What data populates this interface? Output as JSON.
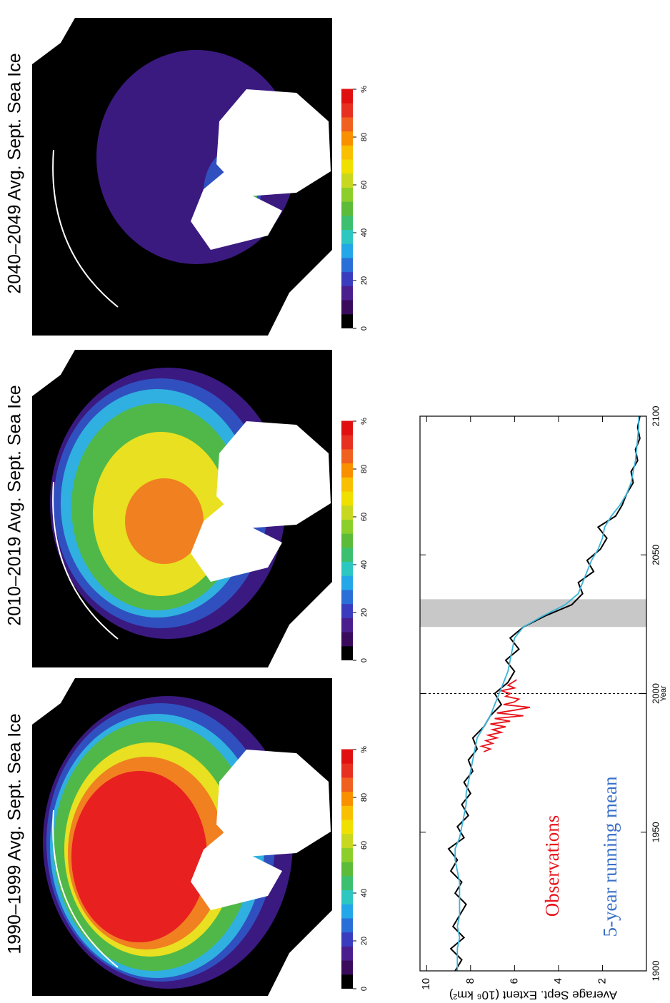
{
  "maps": [
    {
      "title": "1990–1999 Avg. Sept. Sea Ice"
    },
    {
      "title": "2010–2019 Avg. Sept. Sea Ice"
    },
    {
      "title": "2040–2049 Avg. Sept. Sea Ice"
    }
  ],
  "colorbar": {
    "lim": [
      0,
      100
    ],
    "ticks": [
      0,
      20,
      40,
      60,
      80,
      {
        "value": 100,
        "label": "%"
      }
    ],
    "colors": [
      "#000000",
      "#3a0a5c",
      "#4a1e8c",
      "#3a3cc0",
      "#2a6ed8",
      "#22a8e8",
      "#2cc7c0",
      "#3cc070",
      "#5dbb3a",
      "#8ccf2a",
      "#c8d820",
      "#f0e000",
      "#f8c000",
      "#f89000",
      "#f06020",
      "#e83020",
      "#e01010"
    ]
  },
  "chart_data": {
    "type": "line",
    "xlabel": "Year",
    "ylabel": "Average Sept. Extent (10⁶ km²)",
    "xlim": [
      1900,
      2100
    ],
    "xticks": [
      1900,
      1950,
      2000,
      2050,
      2100
    ],
    "ylim": [
      0,
      10.3
    ],
    "yticks": [
      2,
      4,
      6,
      8,
      10
    ],
    "shade": [
      2024,
      2034
    ],
    "vline": 2000,
    "x": [
      1900,
      1904,
      1908,
      1912,
      1916,
      1920,
      1924,
      1928,
      1932,
      1936,
      1940,
      1944,
      1948,
      1952,
      1956,
      1960,
      1964,
      1968,
      1972,
      1976,
      1980,
      1984,
      1988,
      1992,
      1996,
      2000,
      2004,
      2008,
      2012,
      2016,
      2020,
      2024,
      2028,
      2032,
      2036,
      2040,
      2044,
      2048,
      2052,
      2056,
      2060,
      2064,
      2068,
      2072,
      2076,
      2080,
      2084,
      2088,
      2092,
      2096,
      2100
    ],
    "series": [
      {
        "color": "#000000",
        "values": [
          8.7,
          8.4,
          8.9,
          8.3,
          8.8,
          8.5,
          8.2,
          8.7,
          8.4,
          8.9,
          8.6,
          9.0,
          8.3,
          8.6,
          8.1,
          8.4,
          8.0,
          8.3,
          7.9,
          8.1,
          7.7,
          7.9,
          7.4,
          7.1,
          6.6,
          6.9,
          6.3,
          6.0,
          6.4,
          5.8,
          6.2,
          5.6,
          4.6,
          3.4,
          2.9,
          3.1,
          2.4,
          2.7,
          2.1,
          1.8,
          2.2,
          1.4,
          1.1,
          0.9,
          0.6,
          0.7,
          0.4,
          0.5,
          0.3,
          0.4,
          0.3
        ]
      },
      {
        "name": "5-year running mean",
        "color": "#3ab4d8",
        "values": [
          8.6,
          8.6,
          8.6,
          8.5,
          8.6,
          8.5,
          8.5,
          8.5,
          8.5,
          8.6,
          8.7,
          8.7,
          8.5,
          8.4,
          8.3,
          8.2,
          8.2,
          8.1,
          8.0,
          7.9,
          7.8,
          7.7,
          7.4,
          7.1,
          6.9,
          6.7,
          6.5,
          6.3,
          6.2,
          6.1,
          6.0,
          5.6,
          4.7,
          3.7,
          3.1,
          2.9,
          2.7,
          2.5,
          2.2,
          2.0,
          1.9,
          1.6,
          1.2,
          0.9,
          0.7,
          0.6,
          0.5,
          0.45,
          0.4,
          0.35,
          0.35
        ]
      },
      {
        "name": "Observations",
        "color": "#e8141c",
        "x": [
          1979,
          1980,
          1981,
          1982,
          1983,
          1984,
          1985,
          1986,
          1987,
          1988,
          1989,
          1990,
          1991,
          1992,
          1993,
          1994,
          1995,
          1996,
          1997,
          1998,
          1999,
          2000,
          2001,
          2002,
          2003,
          2004,
          2005
        ],
        "values": [
          7.4,
          7.1,
          7.5,
          7.0,
          7.3,
          6.8,
          7.2,
          6.6,
          7.0,
          6.4,
          7.1,
          6.2,
          6.9,
          5.6,
          6.8,
          6.0,
          5.3,
          6.5,
          6.0,
          5.8,
          6.4,
          6.2,
          6.6,
          6.0,
          6.3,
          6.1,
          5.9
        ]
      }
    ]
  }
}
